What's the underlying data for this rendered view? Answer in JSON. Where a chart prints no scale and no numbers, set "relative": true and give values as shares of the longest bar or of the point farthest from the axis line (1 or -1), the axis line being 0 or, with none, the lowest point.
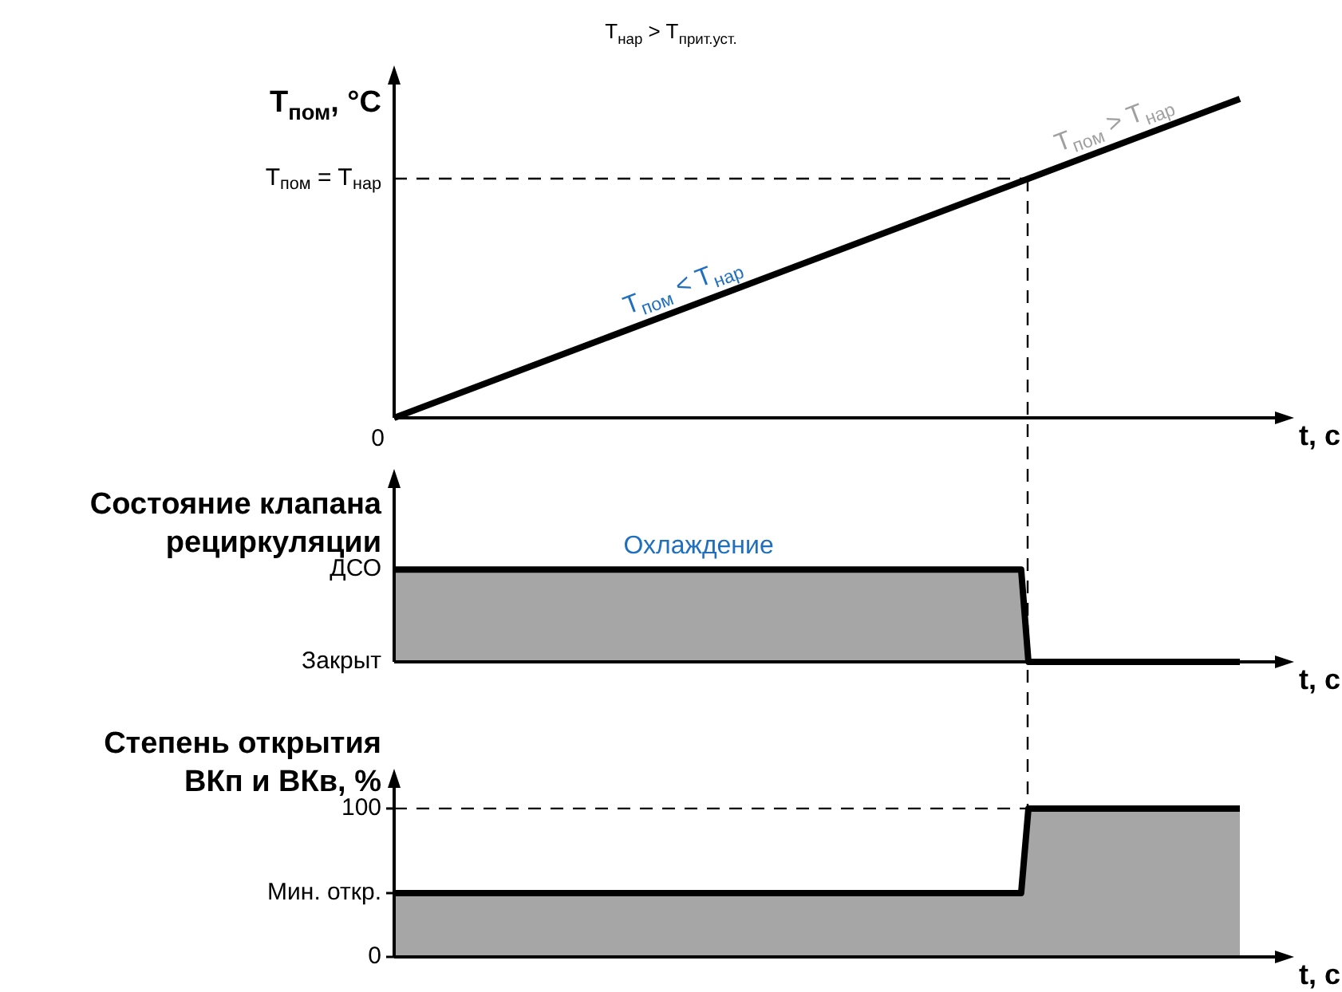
{
  "chart_data": [
    {
      "type": "line",
      "relative": true,
      "title": "T$_{нар}$ > T$_{прит.уст.}$",
      "ylabel": "T$_{пом}$, °C",
      "xlabel": "t, с",
      "categories": [
        null,
        null,
        null,
        null,
        null
      ],
      "series": [
        {
          "color": "#000000",
          "values": [
            0,
            0.25,
            0.5,
            0.75,
            1
          ]
        }
      ],
      "ref_lines": [
        {
          "axis": "y",
          "value": 0.75,
          "label": "T$_{пом}$ = T$_{нар}$",
          "line_style": "dashed"
        }
      ],
      "annotations": [
        "0",
        "T$_{пом}$ < T$_{нар}$",
        "T$_{пом}$ > T$_{нар}$"
      ],
      "grid": false,
      "legend": false
    },
    {
      "type": "area",
      "relative": true,
      "ylabel": "Состояние клапана\nрециркуляции",
      "xlabel": "t, с",
      "categories": [
        null,
        null,
        null,
        null,
        null,
        null,
        null,
        null,
        null,
        null,
        null,
        null,
        null,
        null,
        null,
        null,
        null,
        null,
        null,
        null,
        null,
        null,
        null,
        null,
        null,
        null,
        null,
        null,
        null,
        null,
        null,
        null,
        null,
        null,
        null,
        null,
        null,
        null,
        null,
        null,
        null,
        null,
        null,
        null,
        null,
        null,
        null,
        null,
        null,
        null,
        null,
        null,
        null,
        null,
        null,
        null,
        null,
        null,
        null,
        null,
        null,
        null,
        null,
        null,
        null,
        null,
        null,
        null,
        null,
        null,
        null,
        null,
        null,
        null,
        null,
        null,
        null,
        null,
        null,
        null,
        null,
        null,
        null,
        null,
        null,
        null,
        null,
        null,
        null,
        null,
        null,
        null,
        null,
        null,
        null,
        null,
        null,
        null,
        null,
        null,
        null,
        null,
        null,
        null,
        null,
        null,
        null,
        null,
        null,
        null,
        null,
        null,
        null,
        null,
        null,
        null,
        null
      ],
      "series": [
        {
          "color": "#000000",
          "values": [
            1,
            1,
            1,
            1,
            1,
            1,
            1,
            1,
            1,
            1,
            1,
            1,
            1,
            1,
            1,
            1,
            1,
            1,
            1,
            1,
            1,
            1,
            1,
            1,
            1,
            1,
            1,
            1,
            1,
            1,
            1,
            1,
            1,
            1,
            1,
            1,
            1,
            1,
            1,
            1,
            1,
            1,
            1,
            1,
            1,
            1,
            1,
            1,
            1,
            1,
            1,
            1,
            1,
            1,
            1,
            1,
            1,
            1,
            1,
            1,
            1,
            1,
            1,
            1,
            1,
            1,
            1,
            1,
            1,
            1,
            1,
            1,
            1,
            1,
            1,
            1,
            1,
            1,
            1,
            1,
            1,
            1,
            1,
            1,
            1,
            1,
            1,
            0,
            0,
            0,
            0,
            0,
            0,
            0,
            0,
            0,
            0,
            0,
            0,
            0,
            0,
            0,
            0,
            0,
            0,
            0,
            0,
            0,
            0,
            0,
            0,
            0,
            0,
            0,
            0,
            0,
            0
          ]
        }
      ],
      "annotations": [
        "ДСО",
        "Закрыт",
        {
          "text": "Охлаждение",
          "y": 1
        }
      ],
      "grid": false,
      "legend": false
    },
    {
      "type": "area",
      "ylabel": "Степень открытия\nВКп и ВКв, %",
      "xlabel": "t, с",
      "categories": [
        null,
        null,
        null,
        null,
        null,
        null,
        null,
        null,
        null,
        null,
        null,
        null,
        null,
        null,
        null,
        null,
        null,
        null,
        null,
        null,
        null,
        null,
        null,
        null,
        null,
        null,
        null,
        null,
        null,
        null,
        null,
        null,
        null,
        null,
        null,
        null,
        null,
        null,
        null,
        null,
        null,
        null,
        null,
        null,
        null,
        null,
        null,
        null,
        null,
        null,
        null,
        null,
        null,
        null,
        null,
        null,
        null,
        null,
        null,
        null,
        null,
        null,
        null,
        null,
        null,
        null,
        null,
        null,
        null,
        null,
        null,
        null,
        null,
        null,
        null,
        null,
        null,
        null,
        null,
        null,
        null,
        null,
        null,
        null,
        null,
        null,
        null,
        null,
        null,
        null,
        null,
        null,
        null,
        null,
        null,
        null,
        null,
        null,
        null,
        null,
        null,
        null,
        null,
        null,
        null,
        null,
        null,
        null,
        null,
        null,
        null,
        null,
        null,
        null,
        null,
        null,
        null
      ],
      "series": [
        {
          "color": "#000000",
          "values": [
            43,
            43,
            43,
            43,
            43,
            43,
            43,
            43,
            43,
            43,
            43,
            43,
            43,
            43,
            43,
            43,
            43,
            43,
            43,
            43,
            43,
            43,
            43,
            43,
            43,
            43,
            43,
            43,
            43,
            43,
            43,
            43,
            43,
            43,
            43,
            43,
            43,
            43,
            43,
            43,
            43,
            43,
            43,
            43,
            43,
            43,
            43,
            43,
            43,
            43,
            43,
            43,
            43,
            43,
            43,
            43,
            43,
            43,
            43,
            43,
            43,
            43,
            43,
            43,
            43,
            43,
            43,
            43,
            43,
            43,
            43,
            43,
            43,
            43,
            43,
            43,
            43,
            43,
            43,
            43,
            43,
            43,
            43,
            43,
            43,
            43,
            43,
            100,
            100,
            100,
            100,
            100,
            100,
            100,
            100,
            100,
            100,
            100,
            100,
            100,
            100,
            100,
            100,
            100,
            100,
            100,
            100,
            100,
            100,
            100,
            100,
            100,
            100,
            100,
            100,
            100,
            100
          ]
        }
      ],
      "ylim": [
        0,
        115
      ],
      "yticks": [
        {
          "value": 0,
          "label": "0"
        },
        {
          "value": 43,
          "label": "Мин. откр."
        },
        {
          "value": 100,
          "label": "100"
        }
      ],
      "tick_labels": "y",
      "ref_lines": [
        {
          "axis": "y",
          "value": 100,
          "line_style": "dashed"
        }
      ],
      "grid": false,
      "legend": false
    }
  ]
}
